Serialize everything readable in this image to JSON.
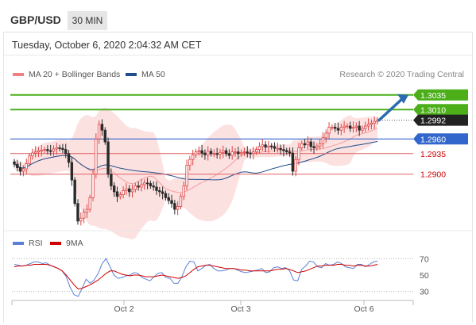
{
  "header": {
    "symbol": "GBP/USD",
    "timeframe": "30 MIN"
  },
  "date_label": "Tuesday, October 6, 2020 2:04:32 AM CET",
  "legend": {
    "bollinger_label": "MA 20 + Bollinger Bands",
    "ma50_label": "MA 50",
    "rsi_label": "RSI",
    "nine_ma_label": "9MA",
    "credit": "Research © 2020 Trading Central"
  },
  "colors": {
    "bollinger": "#f08080",
    "ma50": "#1f4e8c",
    "rsi": "#5b7fd6",
    "nine_ma": "#d00000",
    "resistance": "#4caf1a",
    "support_blue": "#3366cc",
    "support_red": "#e06060",
    "bull": "#dd4444",
    "bear": "#2a2a2a",
    "arrow": "#2b6cb0"
  },
  "chart_data": [
    {
      "type": "candlestick",
      "x_ticks": [
        "Oct 2",
        "Oct 3",
        "Oct 6"
      ],
      "ylim": [
        1.2805,
        1.3055
      ],
      "levels": [
        {
          "label": "1.3035",
          "value": 1.3035,
          "style": "resistance"
        },
        {
          "label": "1.3010",
          "value": 1.301,
          "style": "resistance"
        },
        {
          "label": "1.2992",
          "value": 1.2992,
          "style": "last"
        },
        {
          "label": "1.2960",
          "value": 1.296,
          "style": "support_blue"
        },
        {
          "label": "1.2935",
          "value": 1.2935,
          "style": "support_red"
        },
        {
          "label": "1.2900",
          "value": 1.29,
          "style": "support_red"
        }
      ],
      "close": [
        1.2917,
        1.2911,
        1.2905,
        1.2909,
        1.2918,
        1.2931,
        1.2936,
        1.2938,
        1.294,
        1.2941,
        1.2942,
        1.294,
        1.2939,
        1.2943,
        1.2945,
        1.2944,
        1.2942,
        1.2935,
        1.292,
        1.289,
        1.285,
        1.282,
        1.2825,
        1.2835,
        1.284,
        1.286,
        1.29,
        1.296,
        1.2985,
        1.2975,
        1.2955,
        1.29,
        1.288,
        1.287,
        1.2862,
        1.2865,
        1.2872,
        1.2875,
        1.287,
        1.2874,
        1.288,
        1.2878,
        1.2882,
        1.2885,
        1.2884,
        1.288,
        1.2878,
        1.2872,
        1.287,
        1.2867,
        1.286,
        1.2855,
        1.285,
        1.284,
        1.2845,
        1.2862,
        1.288,
        1.2915,
        1.2925,
        1.2933,
        1.2938,
        1.294,
        1.2936,
        1.2933,
        1.2939,
        1.2935,
        1.2935,
        1.2934,
        1.2937,
        1.294,
        1.2935,
        1.2932,
        1.2938,
        1.2938,
        1.2935,
        1.2937,
        1.2938,
        1.2936,
        1.2935,
        1.2938,
        1.2942,
        1.2947,
        1.295,
        1.2946,
        1.2948,
        1.2947,
        1.2944,
        1.2944,
        1.2942,
        1.294,
        1.2938,
        1.2936,
        1.2905,
        1.2925,
        1.2945,
        1.2952,
        1.295,
        1.2955,
        1.2947,
        1.2945,
        1.2948,
        1.2952,
        1.2962,
        1.297,
        1.298,
        1.298,
        1.2978,
        1.2975,
        1.298,
        1.2982,
        1.2982,
        1.2978,
        1.298,
        1.2982,
        1.2975,
        1.2978,
        1.2982,
        1.2985,
        1.2987,
        1.299,
        1.2992
      ],
      "current": 1.2992
    },
    {
      "type": "line",
      "title": "RSI",
      "ylim": [
        22,
        78
      ],
      "y_ticks": [
        70,
        50,
        30
      ],
      "series": [
        {
          "name": "RSI",
          "values": [
            63,
            62,
            61,
            62,
            64,
            66,
            66,
            64,
            65,
            62,
            60,
            58,
            55,
            48,
            35,
            26,
            24,
            34,
            45,
            40,
            44,
            52,
            64,
            70,
            60,
            50,
            46,
            47,
            49,
            50,
            53,
            52,
            47,
            45,
            43,
            48,
            52,
            53,
            47,
            46,
            40,
            40,
            48,
            60,
            67,
            66,
            55,
            58,
            62,
            63,
            58,
            55,
            55,
            56,
            58,
            58,
            56,
            54,
            53,
            54,
            55,
            56,
            58,
            53,
            54,
            59,
            60,
            58,
            59,
            55,
            44,
            43,
            57,
            61,
            67,
            66,
            60,
            59,
            64,
            62,
            63,
            66,
            64,
            60,
            59,
            58,
            63,
            63,
            60,
            63,
            66,
            67
          ]
        },
        {
          "name": "9MA",
          "values": [
            60,
            61,
            61,
            62,
            62,
            63,
            63,
            63,
            63,
            62,
            60,
            58,
            55,
            50,
            44,
            38,
            33,
            34,
            36,
            38,
            41,
            44,
            48,
            52,
            55,
            55,
            53,
            51,
            50,
            49,
            50,
            50,
            49,
            48,
            48,
            48,
            49,
            50,
            49,
            48,
            47,
            46,
            47,
            49,
            53,
            57,
            60,
            61,
            62,
            62,
            61,
            60,
            59,
            58,
            58,
            58,
            57,
            56,
            56,
            55,
            55,
            55,
            55,
            55,
            55,
            56,
            57,
            57,
            58,
            57,
            55,
            53,
            54,
            55,
            57,
            59,
            61,
            61,
            62,
            62,
            62,
            63,
            63,
            62,
            62,
            61,
            62,
            62,
            61,
            61,
            62,
            63
          ]
        }
      ]
    }
  ]
}
